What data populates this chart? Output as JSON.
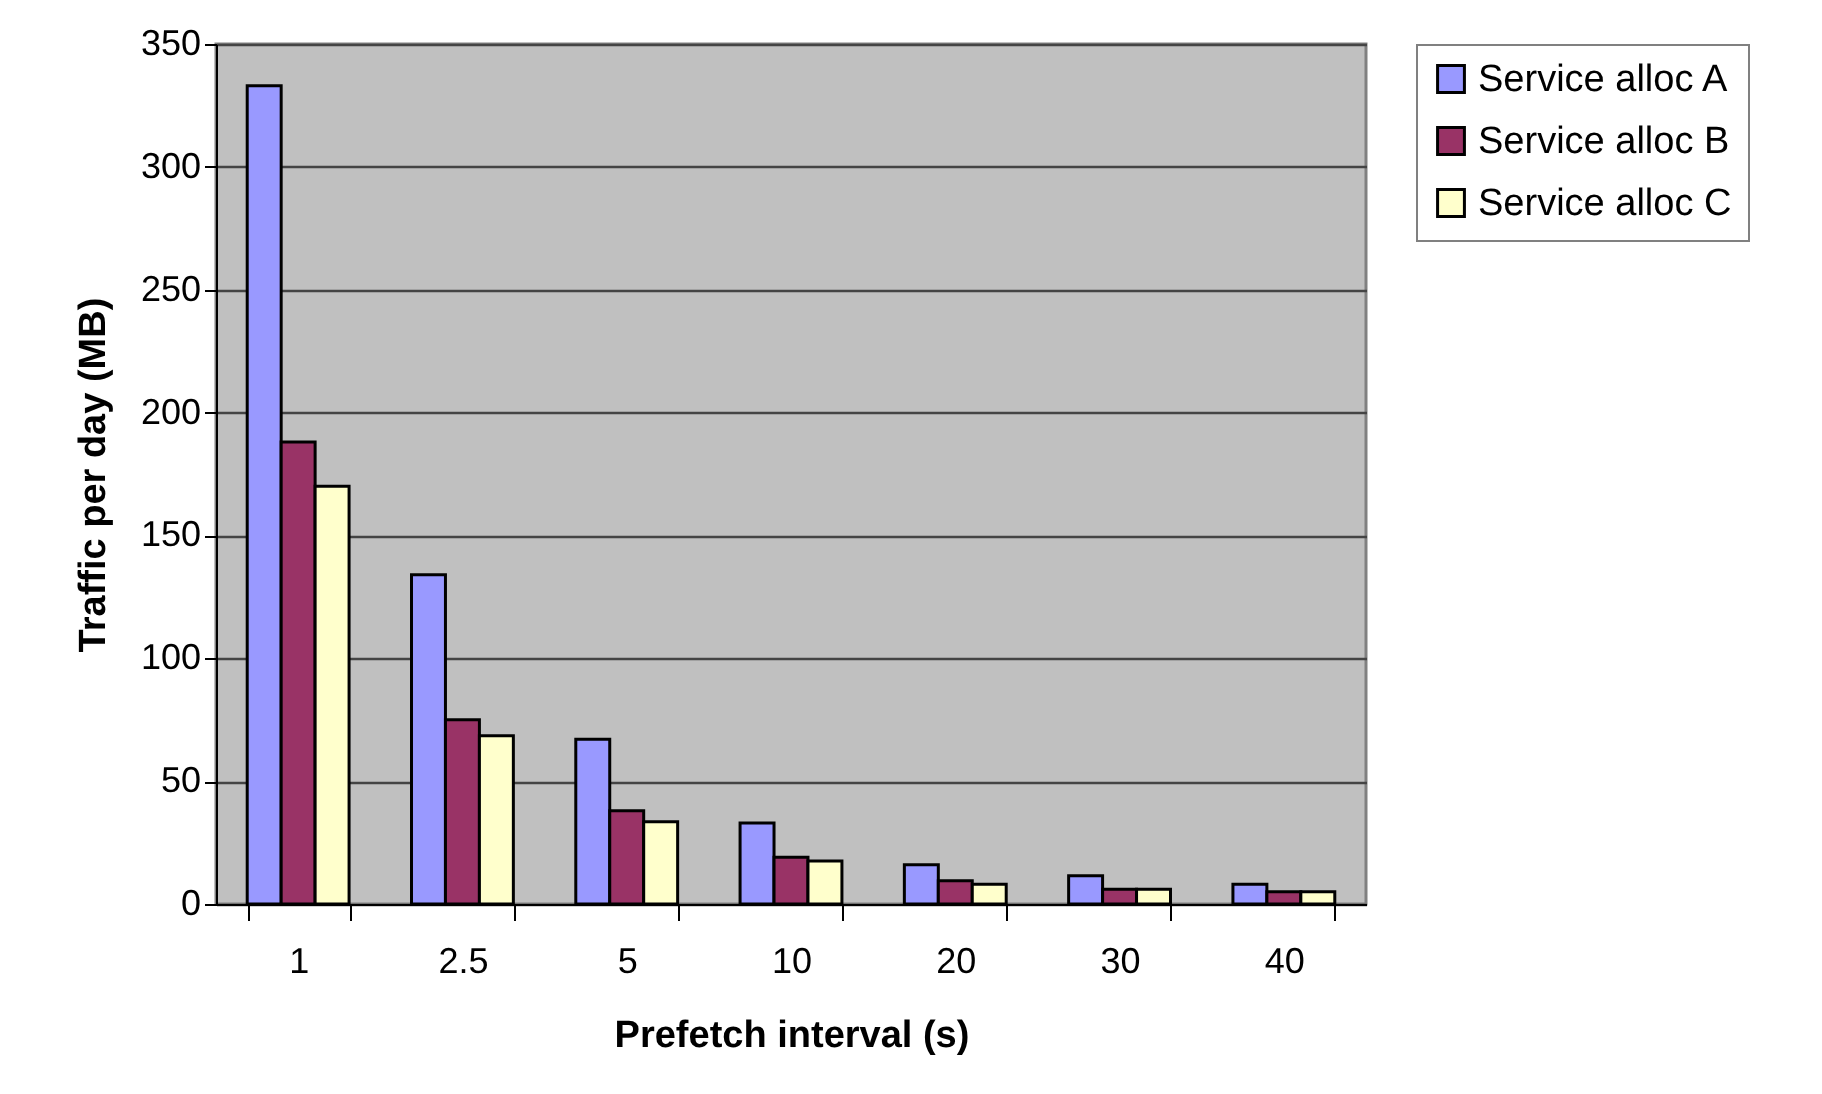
{
  "chart_data": {
    "type": "bar",
    "xlabel": "Prefetch interval (s)",
    "ylabel": "Traffic per day (MB)",
    "categories": [
      "1",
      "2.5",
      "5",
      "10",
      "20",
      "30",
      "40"
    ],
    "series": [
      {
        "name": "Service alloc A",
        "color": "#9999ff",
        "values": [
          333,
          134,
          67,
          33,
          16,
          11.5,
          8
        ]
      },
      {
        "name": "Service alloc B",
        "color": "#993366",
        "values": [
          188,
          75,
          38,
          19,
          9.5,
          6,
          5
        ]
      },
      {
        "name": "Service alloc C",
        "color": "#ffffcc",
        "values": [
          170,
          68.5,
          33.5,
          17.5,
          8,
          6,
          5
        ]
      }
    ],
    "ylim": [
      0,
      350
    ],
    "yticks": [
      0,
      50,
      100,
      150,
      200,
      250,
      300,
      350
    ],
    "grid": "y",
    "legend": "right"
  }
}
